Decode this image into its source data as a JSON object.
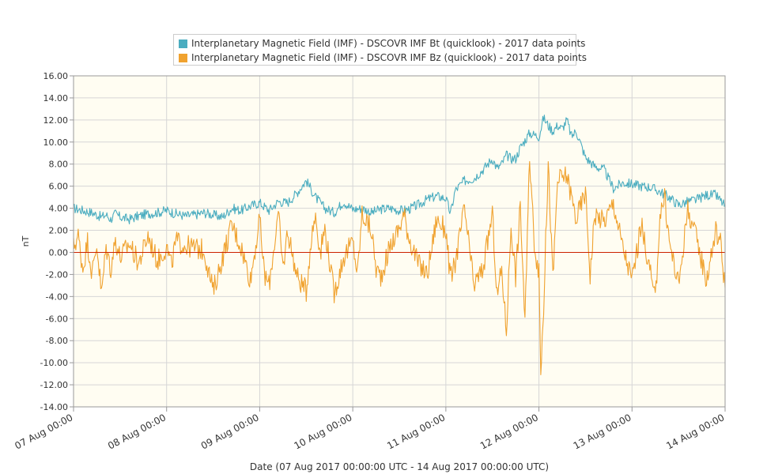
{
  "chart_data": {
    "type": "line",
    "xlabel": "Date (07 Aug 2017 00:00:00 UTC - 14 Aug 2017 00:00:00 UTC)",
    "ylabel": "nT",
    "ylim": [
      -14,
      16
    ],
    "xlim": [
      "2017-08-07T00:00:00Z",
      "2017-08-14T00:00:00Z"
    ],
    "y_ticks": [
      "16.00",
      "14.00",
      "12.00",
      "10.00",
      "8.00",
      "6.00",
      "4.00",
      "2.00",
      "0.00",
      "-2.00",
      "-4.00",
      "-6.00",
      "-8.00",
      "-10.00",
      "-12.00",
      "-14.00"
    ],
    "x_ticks": [
      "07 Aug 00:00",
      "08 Aug 00:00",
      "09 Aug 00:00",
      "10 Aug 00:00",
      "11 Aug 00:00",
      "12 Aug 00:00",
      "13 Aug 00:00",
      "14 Aug 00:00"
    ],
    "grid": true,
    "legend_position": "top",
    "background": "#fffdf2",
    "zero_line_color": "#cc2200",
    "series": [
      {
        "name": "Interplanetary Magnetic Field (IMF) - DSCOVR IMF Bt (quicklook) - 2017 data points",
        "color": "#4badc0",
        "x_days": [
          0,
          0.1,
          0.2,
          0.3,
          0.35,
          0.4,
          0.45,
          0.5,
          0.6,
          0.7,
          0.8,
          0.9,
          1.0,
          1.1,
          1.2,
          1.3,
          1.4,
          1.5,
          1.6,
          1.7,
          1.8,
          1.9,
          2.0,
          2.1,
          2.2,
          2.3,
          2.4,
          2.5,
          2.6,
          2.7,
          2.8,
          2.9,
          3.0,
          3.1,
          3.2,
          3.3,
          3.4,
          3.5,
          3.6,
          3.7,
          3.8,
          3.9,
          4.0,
          4.05,
          4.1,
          4.2,
          4.3,
          4.4,
          4.5,
          4.55,
          4.6,
          4.65,
          4.7,
          4.75,
          4.8,
          4.9,
          5.0,
          5.05,
          5.1,
          5.15,
          5.2,
          5.25,
          5.3,
          5.35,
          5.4,
          5.45,
          5.5,
          5.6,
          5.7,
          5.8,
          5.9,
          6.0,
          6.1,
          6.2,
          6.3,
          6.4,
          6.5,
          6.6,
          6.7,
          6.8,
          6.9,
          7.0
        ],
        "values": [
          4.0,
          3.8,
          3.6,
          3.2,
          3.4,
          3.0,
          3.5,
          3.2,
          3.0,
          3.3,
          3.5,
          3.6,
          3.8,
          3.5,
          3.3,
          3.4,
          3.6,
          3.4,
          3.2,
          4.0,
          3.8,
          4.2,
          4.5,
          3.8,
          4.6,
          4.5,
          5.4,
          6.5,
          5.0,
          4.0,
          3.6,
          4.6,
          3.9,
          4.0,
          3.6,
          3.9,
          4.0,
          3.8,
          3.9,
          4.3,
          4.8,
          5.1,
          4.9,
          3.5,
          5.6,
          6.5,
          6.7,
          7.5,
          8.5,
          7.6,
          8.0,
          8.8,
          8.5,
          8.5,
          9.5,
          10.8,
          10.5,
          12.2,
          11.5,
          11.0,
          11.5,
          11.2,
          12.0,
          10.5,
          11.0,
          9.8,
          8.6,
          7.8,
          7.5,
          5.8,
          6.3,
          6.2,
          6.0,
          5.9,
          5.5,
          5.0,
          4.3,
          4.6,
          4.8,
          5.2,
          5.2,
          4.2
        ]
      },
      {
        "name": "Interplanetary Magnetic Field (IMF) - DSCOVR IMF Bz (quicklook) - 2017 data points",
        "color": "#f0a22f",
        "x_days": [
          0,
          0.05,
          0.1,
          0.15,
          0.2,
          0.25,
          0.3,
          0.35,
          0.4,
          0.45,
          0.5,
          0.6,
          0.7,
          0.8,
          0.9,
          1.0,
          1.05,
          1.1,
          1.2,
          1.3,
          1.4,
          1.5,
          1.55,
          1.6,
          1.65,
          1.7,
          1.8,
          1.9,
          2.0,
          2.05,
          2.1,
          2.2,
          2.25,
          2.3,
          2.4,
          2.5,
          2.55,
          2.6,
          2.65,
          2.7,
          2.8,
          2.9,
          3.0,
          3.05,
          3.1,
          3.2,
          3.25,
          3.3,
          3.4,
          3.5,
          3.55,
          3.6,
          3.7,
          3.8,
          3.9,
          4.0,
          4.05,
          4.1,
          4.2,
          4.3,
          4.4,
          4.5,
          4.55,
          4.6,
          4.65,
          4.7,
          4.75,
          4.8,
          4.85,
          4.9,
          4.95,
          5.0,
          5.02,
          5.05,
          5.08,
          5.1,
          5.15,
          5.2,
          5.3,
          5.4,
          5.5,
          5.55,
          5.6,
          5.7,
          5.8,
          5.9,
          6.0,
          6.1,
          6.2,
          6.25,
          6.3,
          6.35,
          6.4,
          6.5,
          6.6,
          6.7,
          6.8,
          6.9,
          6.95,
          7.0
        ],
        "values": [
          0.5,
          1.5,
          -1.5,
          1.0,
          -2.0,
          0.8,
          -3.8,
          0.5,
          -1.5,
          1.2,
          -0.5,
          0.8,
          -1.0,
          1.5,
          -0.8,
          0.5,
          -1.2,
          1.0,
          0.6,
          0.4,
          0.2,
          -3.5,
          -2.0,
          -0.5,
          1.0,
          2.5,
          0.5,
          -2.5,
          3.0,
          -2.0,
          -3.0,
          3.5,
          -1.5,
          2.0,
          -2.2,
          -3.5,
          1.0,
          3.5,
          0.0,
          2.2,
          -3.8,
          -0.5,
          1.0,
          -2.0,
          3.5,
          2.0,
          -1.5,
          -2.2,
          0.5,
          2.2,
          3.5,
          1.5,
          -1.0,
          -2.0,
          3.0,
          2.0,
          -2.5,
          -1.0,
          4.0,
          -3.0,
          -1.5,
          3.5,
          -4.0,
          -1.5,
          -7.2,
          2.5,
          -2.2,
          4.2,
          -6.3,
          8.5,
          1.0,
          -2.0,
          -10.7,
          -5.0,
          3.0,
          8.0,
          -2.5,
          6.5,
          7.0,
          3.0,
          5.5,
          -2.0,
          3.5,
          2.8,
          4.5,
          0.5,
          -2.5,
          2.5,
          -2.0,
          -4.5,
          3.5,
          5.0,
          1.0,
          -3.0,
          4.0,
          1.0,
          -2.5,
          2.0,
          1.0,
          -3.2
        ]
      }
    ]
  }
}
